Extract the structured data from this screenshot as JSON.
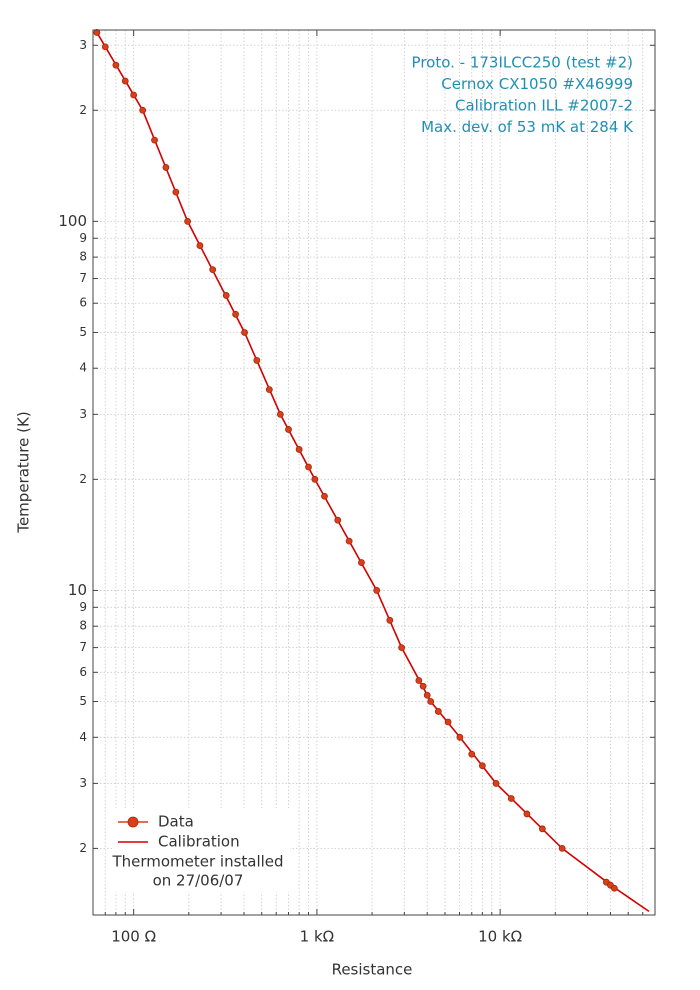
{
  "chart_data": {
    "type": "line",
    "xlabel": "Resistance",
    "ylabel": "Temperature (K)",
    "xscale": "log",
    "yscale": "log",
    "grid": true,
    "xlim": [
      60,
      70000
    ],
    "ylim": [
      1.32,
      330
    ],
    "xticks": [
      {
        "value": 100,
        "label": "100 Ω"
      },
      {
        "value": 1000,
        "label": "1 kΩ"
      },
      {
        "value": 10000,
        "label": "10 kΩ"
      }
    ],
    "xminor_ticks": [
      70,
      80,
      90,
      200,
      300,
      400,
      500,
      600,
      700,
      800,
      900,
      2000,
      3000,
      4000,
      5000,
      6000,
      7000,
      8000,
      9000,
      20000,
      30000,
      40000,
      50000,
      60000
    ],
    "yticks": [
      {
        "value": 300,
        "label": "3"
      },
      {
        "value": 200,
        "label": "2"
      },
      100,
      {
        "value": 90,
        "label": "9"
      },
      {
        "value": 80,
        "label": "8"
      },
      {
        "value": 70,
        "label": "7"
      },
      {
        "value": 60,
        "label": "6"
      },
      {
        "value": 50,
        "label": "5"
      },
      {
        "value": 40,
        "label": "4"
      },
      {
        "value": 30,
        "label": "3"
      },
      {
        "value": 20,
        "label": "2"
      },
      10,
      9,
      8,
      7,
      6,
      5,
      4,
      3,
      2
    ],
    "annotation": [
      "Proto. - 173ILCC250 (test #2)",
      "Cernox CX1050 #X46999",
      "Calibration ILL #2007-2",
      "Max. dev. of 53 mK at 284 K"
    ],
    "annotation_color": "#1f8fb5",
    "legend_note": [
      "Thermometer installed",
      "on 27/06/07"
    ],
    "legend_position": "lower left",
    "series": [
      {
        "name": "Data",
        "style": "markers",
        "color": "#d9401a",
        "x": [
          63,
          70,
          80,
          90,
          100,
          112,
          130,
          150,
          170,
          197,
          230,
          270,
          320,
          360,
          403,
          470,
          550,
          632,
          700,
          800,
          900,
          975,
          1100,
          1300,
          1500,
          1750,
          2120,
          2500,
          2900,
          3600,
          3800,
          4000,
          4180,
          4600,
          5200,
          6030,
          7000,
          8000,
          9500,
          11500,
          14000,
          17000,
          21800,
          38000,
          40000,
          42000
        ],
        "values": [
          325,
          297,
          265,
          240,
          220,
          200,
          166,
          140,
          120,
          100,
          86,
          74,
          63,
          56,
          50,
          42,
          35,
          30,
          27.3,
          24.1,
          21.6,
          20,
          18,
          15.5,
          13.6,
          11.9,
          10,
          8.3,
          7,
          5.7,
          5.5,
          5.2,
          5,
          4.7,
          4.4,
          4,
          3.6,
          3.35,
          3,
          2.73,
          2.48,
          2.26,
          2,
          1.62,
          1.59,
          1.56
        ]
      },
      {
        "name": "Calibration",
        "style": "line",
        "color": "#d40000",
        "x": [
          63,
          112,
          197,
          403,
          632,
          975,
          2120,
          2900,
          4180,
          6030,
          9500,
          21800,
          41700,
          64900
        ],
        "values": [
          325,
          200,
          100,
          50,
          30,
          20,
          10,
          7,
          5,
          4,
          3,
          2,
          1.57,
          1.35
        ]
      }
    ]
  }
}
